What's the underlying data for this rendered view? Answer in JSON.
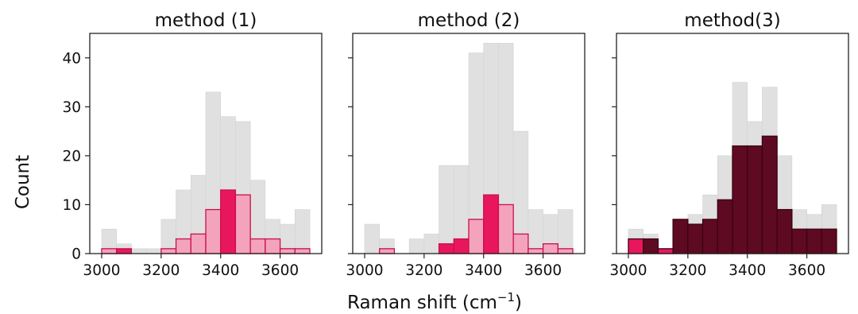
{
  "figure": {
    "ylabel": "Count",
    "xlabel": "Raman shift (cm",
    "xlabel_sup": "−1",
    "xlabel_close": ")"
  },
  "chart_data": [
    {
      "type": "histogram",
      "title": "method (1)",
      "bin_edges": [
        3000,
        3050,
        3100,
        3150,
        3200,
        3250,
        3300,
        3350,
        3400,
        3450,
        3500,
        3550,
        3600,
        3650,
        3700
      ],
      "xlim": [
        2960,
        3740
      ],
      "ylim": [
        0,
        45
      ],
      "xticks": [
        3000,
        3200,
        3400,
        3600
      ],
      "yticks": [
        0,
        10,
        20,
        30,
        40
      ],
      "series": [
        {
          "role": "background",
          "color": "#e0e0e0",
          "values": [
            5,
            2,
            1,
            1,
            7,
            13,
            16,
            33,
            28,
            27,
            15,
            7,
            6,
            9
          ]
        },
        {
          "role": "foreground",
          "values": [
            1,
            1,
            0,
            0,
            1,
            3,
            4,
            9,
            13,
            12,
            3,
            3,
            1,
            1
          ],
          "colors": [
            "#f4a3bd",
            "#e8175d",
            "#f4a3bd",
            "#f4a3bd",
            "#f4a3bd",
            "#f4a3bd",
            "#f4a3bd",
            "#f4a3bd",
            "#e8175d",
            "#f4a3bd",
            "#f4a3bd",
            "#f4a3bd",
            "#f4a3bd",
            "#f4a3bd"
          ],
          "edgecolor": "#c8104c"
        }
      ]
    },
    {
      "type": "histogram",
      "title": "method (2)",
      "bin_edges": [
        3000,
        3050,
        3100,
        3150,
        3200,
        3250,
        3300,
        3350,
        3400,
        3450,
        3500,
        3550,
        3600,
        3650,
        3700
      ],
      "xlim": [
        2960,
        3740
      ],
      "ylim": [
        0,
        45
      ],
      "xticks": [
        3000,
        3200,
        3400,
        3600
      ],
      "yticks": [
        0,
        10,
        20,
        30,
        40
      ],
      "series": [
        {
          "role": "background",
          "color": "#e0e0e0",
          "values": [
            6,
            3,
            0,
            3,
            4,
            18,
            18,
            41,
            43,
            43,
            25,
            9,
            8,
            9
          ]
        },
        {
          "role": "foreground",
          "values": [
            0,
            1,
            0,
            0,
            0,
            2,
            3,
            7,
            12,
            10,
            4,
            1,
            2,
            1
          ],
          "colors": [
            "#f4a3bd",
            "#f4a3bd",
            "#f4a3bd",
            "#f4a3bd",
            "#f4a3bd",
            "#e8175d",
            "#e8175d",
            "#f4a3bd",
            "#e8175d",
            "#f4a3bd",
            "#f4a3bd",
            "#f4a3bd",
            "#f4a3bd",
            "#f4a3bd"
          ],
          "edgecolor": "#c8104c"
        }
      ]
    },
    {
      "type": "histogram",
      "title": "method(3)",
      "bin_edges": [
        3000,
        3050,
        3100,
        3150,
        3200,
        3250,
        3300,
        3350,
        3400,
        3450,
        3500,
        3550,
        3600,
        3650,
        3700
      ],
      "xlim": [
        2960,
        3740
      ],
      "ylim": [
        0,
        45
      ],
      "xticks": [
        3000,
        3200,
        3400,
        3600
      ],
      "yticks": [
        0,
        10,
        20,
        30,
        40
      ],
      "series": [
        {
          "role": "background",
          "color": "#e0e0e0",
          "values": [
            5,
            4,
            1,
            5,
            8,
            12,
            20,
            35,
            27,
            34,
            20,
            9,
            8,
            10
          ]
        },
        {
          "role": "foreground",
          "values": [
            3,
            3,
            1,
            7,
            6,
            7,
            11,
            22,
            22,
            24,
            9,
            5,
            5,
            5
          ],
          "colors": [
            "#e8175d",
            "#5e0a22",
            "#e8175d",
            "#5e0a22",
            "#5e0a22",
            "#5e0a22",
            "#5e0a22",
            "#5e0a22",
            "#5e0a22",
            "#5e0a22",
            "#5e0a22",
            "#5e0a22",
            "#5e0a22",
            "#5e0a22"
          ],
          "edgecolor": "#3a0414"
        }
      ]
    }
  ]
}
